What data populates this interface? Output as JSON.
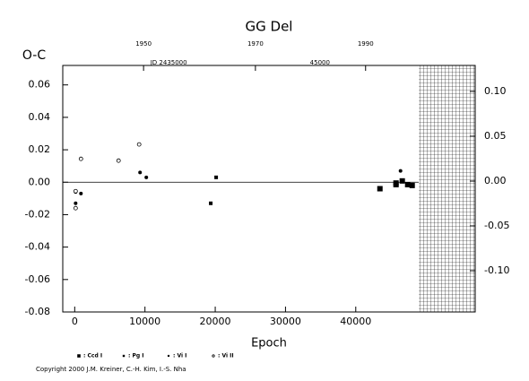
{
  "chart_data": {
    "type": "scatter",
    "title": "GG Del",
    "y_label": "O-C",
    "x_label": "Epoch",
    "copyright": "Copyright 2000 J.M. Kreiner, C.-H. Kim, I.-S. Nha",
    "xlim": [
      -1700,
      57000
    ],
    "ylim": [
      -0.08,
      0.072
    ],
    "y2lim": [
      -0.146,
      0.129
    ],
    "xticks": [
      0,
      10000,
      20000,
      30000,
      40000
    ],
    "yticks": [
      -0.08,
      -0.06,
      -0.04,
      -0.02,
      {
        "value": 0,
        "label": "0.00"
      },
      0.02,
      0.04,
      0.06
    ],
    "y2ticks": [
      {
        "value": -0.1,
        "label": "-0.10"
      },
      -0.05,
      {
        "value": 0,
        "label": "0.00"
      },
      0.05,
      {
        "value": 0.1,
        "label": "0.10"
      }
    ],
    "top_ticks": [
      {
        "value": 9800,
        "label": "1950"
      },
      {
        "value": 25720,
        "label": "1970"
      },
      {
        "value": 41400,
        "label": "1990"
      }
    ],
    "top_annotations": [
      {
        "value": 13380,
        "label": "JD 2435000"
      },
      {
        "value": 34900,
        "label": "45000"
      }
    ],
    "series": [
      {
        "name": ": Ccd I",
        "marker": "big-square",
        "color": "#000000",
        "x": [
          43440,
          45730,
          45730,
          46620,
          47390,
          48030
        ],
        "values": [
          -0.004,
          -0.0005,
          -0.0015,
          0.0008,
          -0.0015,
          -0.002
        ]
      },
      {
        "name": ": Pg I",
        "marker": "small-square",
        "color": "#000000",
        "x": [
          19360,
          20130
        ],
        "values": [
          -0.013,
          0.003
        ]
      },
      {
        "name": ": Vi I",
        "marker": "dot",
        "color": "#000000",
        "x": [
          130,
          130,
          890,
          9300,
          10190,
          46370
        ],
        "values": [
          -0.006,
          -0.013,
          -0.007,
          0.006,
          0.003,
          0.007
        ]
      },
      {
        "name": ": Vi II",
        "marker": "circle",
        "color": "#000000",
        "x": [
          130,
          130,
          890,
          6240,
          9170
        ],
        "values": [
          -0.0055,
          -0.016,
          0.0144,
          0.0133,
          0.0233
        ]
      }
    ]
  }
}
